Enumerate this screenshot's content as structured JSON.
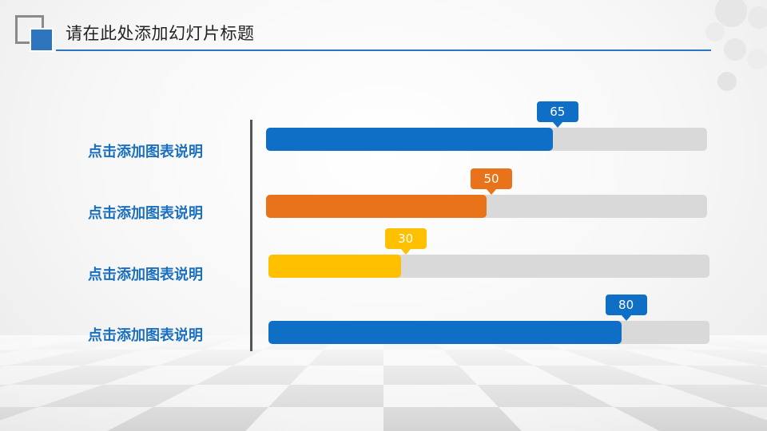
{
  "slide": {
    "title": "请在此处添加幻灯片标题"
  },
  "chart_data": {
    "type": "bar",
    "orientation": "horizontal",
    "categories": [
      "点击添加图表说明",
      "点击添加图表说明",
      "点击添加图表说明",
      "点击添加图表说明"
    ],
    "values": [
      65,
      50,
      30,
      80
    ],
    "xlim": [
      0,
      100
    ],
    "colors": [
      "#0f6fc6",
      "#e8731b",
      "#ffc000",
      "#0f6fc6"
    ],
    "track_color": "#d9d9d9",
    "data_labels": [
      "65",
      "50",
      "30",
      "80"
    ]
  }
}
